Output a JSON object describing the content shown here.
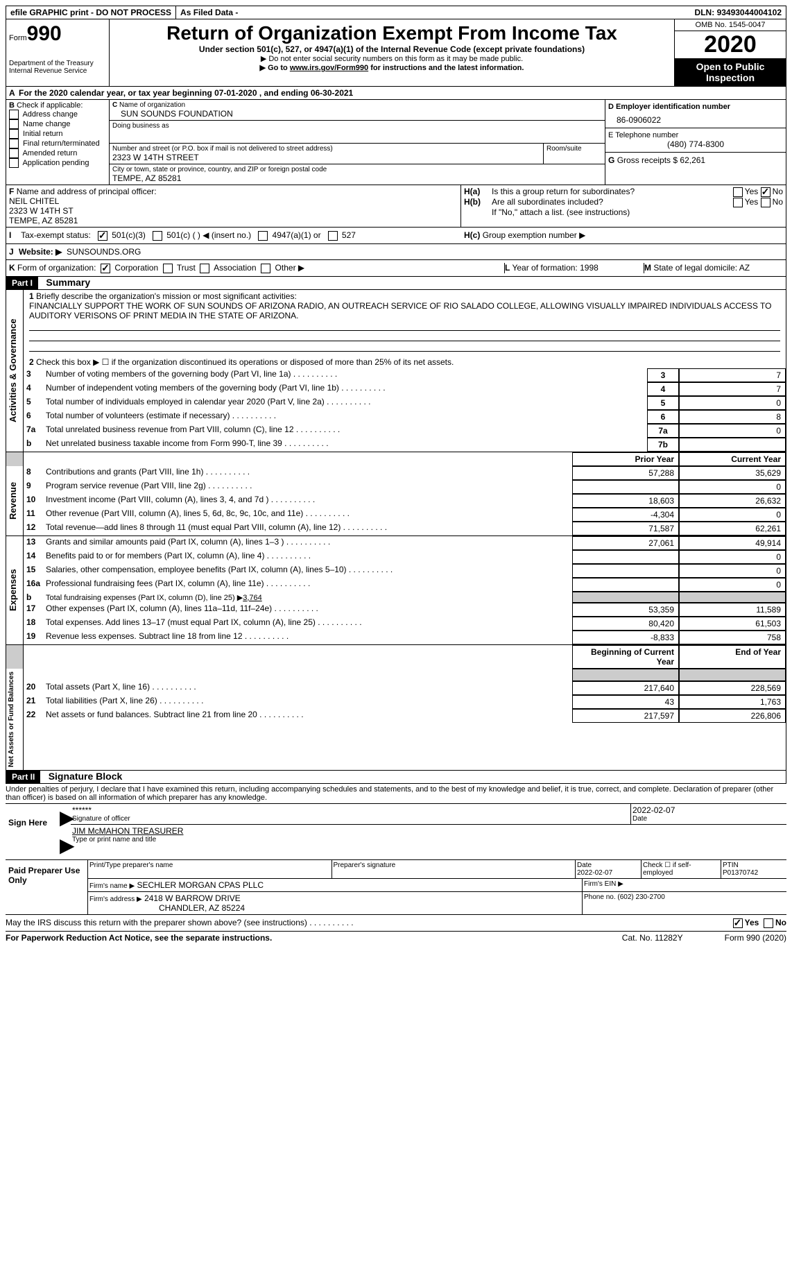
{
  "header": {
    "efile": "efile GRAPHIC print - DO NOT PROCESS",
    "asfiled": "As Filed Data -",
    "dln_label": "DLN:",
    "dln": "93493044004102",
    "form_label": "Form",
    "form_num": "990",
    "dept": "Department of the Treasury\nInternal Revenue Service",
    "title": "Return of Organization Exempt From Income Tax",
    "sub1": "Under section 501(c), 527, or 4947(a)(1) of the Internal Revenue Code (except private foundations)",
    "sub2": "▶ Do not enter social security numbers on this form as it may be made public.",
    "sub3_a": "▶ Go to ",
    "sub3_link": "www.irs.gov/Form990",
    "sub3_b": " for instructions and the latest information.",
    "omb": "OMB No. 1545-0047",
    "year": "2020",
    "open": "Open to Public Inspection"
  },
  "secA": {
    "a_label": "A",
    "a_text": "For the 2020 calendar year, or tax year beginning 07-01-2020   , and ending 06-30-2021",
    "b_label": "B",
    "b_text": "Check if applicable:",
    "b_opts": [
      "Address change",
      "Name change",
      "Initial return",
      "Final return/terminated",
      "Amended return",
      "Application pending"
    ],
    "c_label": "C",
    "c_name_lbl": "Name of organization",
    "c_name": "SUN SOUNDS FOUNDATION",
    "dba_lbl": "Doing business as",
    "street_lbl": "Number and street (or P.O. box if mail is not delivered to street address)",
    "street": "2323 W 14TH STREET",
    "room_lbl": "Room/suite",
    "city_lbl": "City or town, state or province, country, and ZIP or foreign postal code",
    "city": "TEMPE, AZ  85281",
    "d_label": "D Employer identification number",
    "d_ein": "86-0906022",
    "e_label": "E Telephone number",
    "e_phone": "(480) 774-8300",
    "g_label": "G",
    "g_text": "Gross receipts $",
    "g_val": "62,261",
    "f_label": "F",
    "f_text": "Name and address of principal officer:",
    "f_name": "NEIL CHITEL",
    "f_addr1": "2323 W 14TH ST",
    "f_addr2": "TEMPE, AZ  85281",
    "ha_label": "H(a)",
    "ha_text": "Is this a group return for subordinates?",
    "hb_label": "H(b)",
    "hb_text": "Are all subordinates included?",
    "hb_note": "If \"No,\" attach a list. (see instructions)",
    "hc_label": "H(c)",
    "hc_text": "Group exemption number ▶",
    "yes": "Yes",
    "no": "No",
    "i_label": "I",
    "i_text": "Tax-exempt status:",
    "i_501c3": "501(c)(3)",
    "i_501c": "501(c) (   ) ◀ (insert no.)",
    "i_4947": "4947(a)(1) or",
    "i_527": "527",
    "j_label": "J",
    "j_text": "Website: ▶",
    "j_site": "SUNSOUNDS.ORG",
    "k_label": "K",
    "k_text": "Form of organization:",
    "k_corp": "Corporation",
    "k_trust": "Trust",
    "k_assoc": "Association",
    "k_other": "Other ▶",
    "l_label": "L",
    "l_text": "Year of formation:",
    "l_val": "1998",
    "m_label": "M",
    "m_text": "State of legal domicile:",
    "m_val": "AZ"
  },
  "part1": {
    "hdr": "Part I",
    "title": "Summary",
    "side_gov": "Activities & Governance",
    "side_rev": "Revenue",
    "side_exp": "Expenses",
    "side_net": "Net Assets or Fund Balances",
    "l1_num": "1",
    "l1": "Briefly describe the organization's mission or most significant activities:",
    "l1_text": "FINANCIALLY SUPPORT THE WORK OF SUN SOUNDS OF ARIZONA RADIO, AN OUTREACH SERVICE OF RIO SALADO COLLEGE, ALLOWING VISUALLY IMPAIRED INDIVIDUALS ACCESS TO AUDITORY VERISONS OF PRINT MEDIA IN THE STATE OF ARIZONA.",
    "l2_num": "2",
    "l2": "Check this box ▶ ☐ if the organization discontinued its operations or disposed of more than 25% of its net assets.",
    "rows_simple": [
      {
        "n": "3",
        "label": "Number of voting members of the governing body (Part VI, line 1a)",
        "box": "3",
        "val": "7"
      },
      {
        "n": "4",
        "label": "Number of independent voting members of the governing body (Part VI, line 1b)",
        "box": "4",
        "val": "7"
      },
      {
        "n": "5",
        "label": "Total number of individuals employed in calendar year 2020 (Part V, line 2a)",
        "box": "5",
        "val": "0"
      },
      {
        "n": "6",
        "label": "Total number of volunteers (estimate if necessary)",
        "box": "6",
        "val": "8"
      },
      {
        "n": "7a",
        "label": "Total unrelated business revenue from Part VIII, column (C), line 12",
        "box": "7a",
        "val": "0"
      },
      {
        "n": "b",
        "label": "Net unrelated business taxable income from Form 990-T, line 39",
        "box": "7b",
        "val": ""
      }
    ],
    "col_prior": "Prior Year",
    "col_curr": "Current Year",
    "rows_2col": [
      {
        "n": "8",
        "label": "Contributions and grants (Part VIII, line 1h)",
        "p": "57,288",
        "c": "35,629"
      },
      {
        "n": "9",
        "label": "Program service revenue (Part VIII, line 2g)",
        "p": "",
        "c": "0"
      },
      {
        "n": "10",
        "label": "Investment income (Part VIII, column (A), lines 3, 4, and 7d )",
        "p": "18,603",
        "c": "26,632"
      },
      {
        "n": "11",
        "label": "Other revenue (Part VIII, column (A), lines 5, 6d, 8c, 9c, 10c, and 11e)",
        "p": "-4,304",
        "c": "0"
      },
      {
        "n": "12",
        "label": "Total revenue—add lines 8 through 11 (must equal Part VIII, column (A), line 12)",
        "p": "71,587",
        "c": "62,261"
      },
      {
        "n": "13",
        "label": "Grants and similar amounts paid (Part IX, column (A), lines 1–3 )",
        "p": "27,061",
        "c": "49,914"
      },
      {
        "n": "14",
        "label": "Benefits paid to or for members (Part IX, column (A), line 4)",
        "p": "",
        "c": "0"
      },
      {
        "n": "15",
        "label": "Salaries, other compensation, employee benefits (Part IX, column (A), lines 5–10)",
        "p": "",
        "c": "0"
      },
      {
        "n": "16a",
        "label": "Professional fundraising fees (Part IX, column (A), line 11e)",
        "p": "",
        "c": "0"
      }
    ],
    "l16b_n": "b",
    "l16b": "Total fundraising expenses (Part IX, column (D), line 25) ▶",
    "l16b_val": "3,764",
    "rows_2col_b": [
      {
        "n": "17",
        "label": "Other expenses (Part IX, column (A), lines 11a–11d, 11f–24e)",
        "p": "53,359",
        "c": "11,589"
      },
      {
        "n": "18",
        "label": "Total expenses. Add lines 13–17 (must equal Part IX, column (A), line 25)",
        "p": "80,420",
        "c": "61,503"
      },
      {
        "n": "19",
        "label": "Revenue less expenses. Subtract line 18 from line 12",
        "p": "-8,833",
        "c": "758"
      }
    ],
    "col_beg": "Beginning of Current Year",
    "col_end": "End of Year",
    "rows_net": [
      {
        "n": "20",
        "label": "Total assets (Part X, line 16)",
        "p": "217,640",
        "c": "228,569"
      },
      {
        "n": "21",
        "label": "Total liabilities (Part X, line 26)",
        "p": "43",
        "c": "1,763"
      },
      {
        "n": "22",
        "label": "Net assets or fund balances. Subtract line 21 from line 20",
        "p": "217,597",
        "c": "226,806"
      }
    ]
  },
  "part2": {
    "hdr": "Part II",
    "title": "Signature Block",
    "decl": "Under penalties of perjury, I declare that I have examined this return, including accompanying schedules and statements, and to the best of my knowledge and belief, it is true, correct, and complete. Declaration of preparer (other than officer) is based on all information of which preparer has any knowledge.",
    "sign_here": "Sign Here",
    "stars": "******",
    "sig_officer": "Signature of officer",
    "date": "Date",
    "date_val": "2022-02-07",
    "name_title": "JIM McMAHON TREASURER",
    "type_name": "Type or print name and title",
    "paid": "Paid Preparer Use Only",
    "col_print": "Print/Type preparer's name",
    "col_sig": "Preparer's signature",
    "col_date": "Date",
    "col_date_val": "2022-02-07",
    "col_check": "Check ☐ if self-employed",
    "col_ptin_lbl": "PTIN",
    "col_ptin": "P01370742",
    "firm_name_lbl": "Firm's name    ▶",
    "firm_name": "SECHLER MORGAN CPAS PLLC",
    "firm_ein_lbl": "Firm's EIN ▶",
    "firm_addr_lbl": "Firm's address ▶",
    "firm_addr1": "2418 W BARROW DRIVE",
    "firm_addr2": "CHANDLER, AZ  85224",
    "firm_phone_lbl": "Phone no.",
    "firm_phone": "(602) 230-2700",
    "discuss": "May the IRS discuss this return with the preparer shown above? (see instructions)",
    "paperwork": "For Paperwork Reduction Act Notice, see the separate instructions.",
    "cat": "Cat. No. 11282Y",
    "form_foot": "Form 990 (2020)"
  }
}
